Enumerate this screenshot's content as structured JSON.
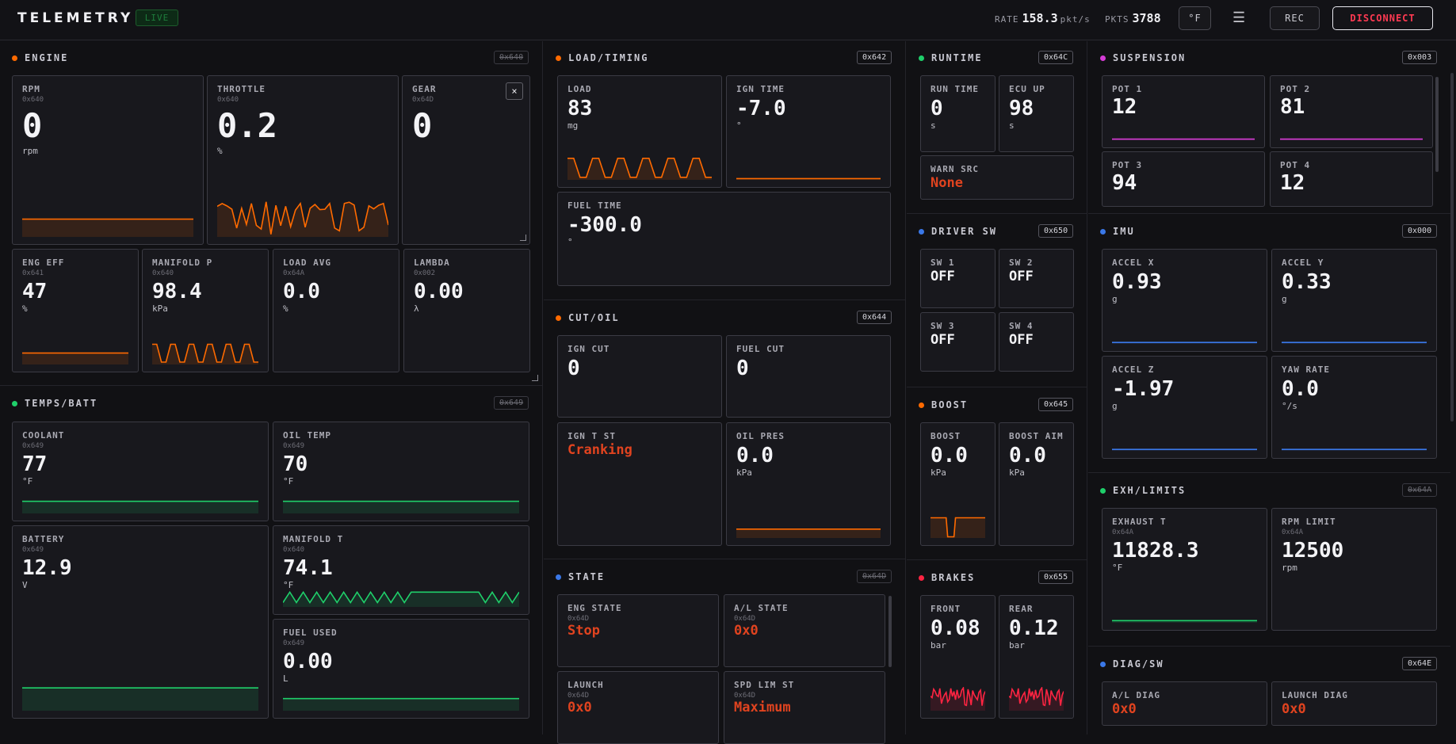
{
  "header": {
    "brand": "TELEMETRY",
    "live": "LIVE",
    "rate_label": "RATE",
    "rate_value": "158.3",
    "rate_unit": "pkt/s",
    "pkts_label": "PKTS",
    "pkts_value": "3788",
    "unit_toggle": "°F",
    "menu_icon": "☰",
    "rec": "REC",
    "disconnect": "DISCONNECT"
  },
  "colors": {
    "engine": "#ff6a00",
    "temps": "#1fcf6a",
    "runtime": "#1fcf6a",
    "suspension": "#d63cd6",
    "driver": "#3a78e8",
    "imu": "#3a78e8",
    "boost": "#ff6a00",
    "brakes": "#ff2442",
    "exh": "#1fcf6a",
    "diag": "#3a78e8",
    "state": "#3a78e8",
    "cut": "#ff6a00",
    "load": "#ff6a00",
    "alert": "#e0431f"
  },
  "engine": {
    "title": "ENGINE",
    "addr": "0x640",
    "rpm": {
      "label": "RPM",
      "hex": "0x640",
      "value": "0",
      "unit": "rpm"
    },
    "throttle": {
      "label": "THROTTLE",
      "hex": "0x640",
      "value": "0.2",
      "unit": "%"
    },
    "gear": {
      "label": "GEAR",
      "hex": "0x64D",
      "value": "0",
      "close": "×"
    },
    "eng_eff": {
      "label": "ENG EFF",
      "hex": "0x641",
      "value": "47",
      "unit": "%"
    },
    "manifold_p": {
      "label": "MANIFOLD P",
      "hex": "0x640",
      "value": "98.4",
      "unit": "kPa"
    },
    "load_avg": {
      "label": "LOAD AVG",
      "hex": "0x64A",
      "value": "0.0",
      "unit": "%"
    },
    "lambda": {
      "label": "LAMBDA",
      "hex": "0x002",
      "value": "0.00",
      "unit": "λ"
    }
  },
  "temps": {
    "title": "TEMPS/BATT",
    "addr": "0x649",
    "coolant": {
      "label": "COOLANT",
      "hex": "0x649",
      "value": "77",
      "unit": "°F"
    },
    "oil_temp": {
      "label": "OIL TEMP",
      "hex": "0x649",
      "value": "70",
      "unit": "°F"
    },
    "battery": {
      "label": "BATTERY",
      "hex": "0x649",
      "value": "12.9",
      "unit": "V"
    },
    "manifold_t": {
      "label": "MANIFOLD T",
      "hex": "0x640",
      "value": "74.1",
      "unit": "°F"
    },
    "fuel_used": {
      "label": "FUEL USED",
      "hex": "0x649",
      "value": "0.00",
      "unit": "L"
    }
  },
  "load_timing": {
    "title": "LOAD/TIMING",
    "addr": "0x642",
    "load": {
      "label": "LOAD",
      "value": "83",
      "unit": "mg"
    },
    "ign_time": {
      "label": "IGN TIME",
      "value": "-7.0",
      "unit": "°"
    },
    "fuel_time": {
      "label": "FUEL TIME",
      "value": "-300.0",
      "unit": "°"
    }
  },
  "cut_oil": {
    "title": "CUT/OIL",
    "addr": "0x644",
    "ign_cut": {
      "label": "IGN CUT",
      "value": "0"
    },
    "fuel_cut": {
      "label": "FUEL CUT",
      "value": "0"
    },
    "ign_t_st": {
      "label": "IGN T ST",
      "value": "Cranking"
    },
    "oil_pres": {
      "label": "OIL PRES",
      "value": "0.0",
      "unit": "kPa"
    }
  },
  "state": {
    "title": "STATE",
    "addr": "0x64D",
    "eng_state": {
      "label": "ENG STATE",
      "hex": "0x64D",
      "value": "Stop"
    },
    "al_state": {
      "label": "A/L STATE",
      "hex": "0x64D",
      "value": "0x0"
    },
    "launch": {
      "label": "LAUNCH",
      "hex": "0x64D",
      "value": "0x0"
    },
    "spd_lim": {
      "label": "SPD LIM ST",
      "hex": "0x64D",
      "value": "Maximum"
    }
  },
  "runtime": {
    "title": "RUNTIME",
    "addr": "0x64C",
    "run_time": {
      "label": "RUN TIME",
      "value": "0",
      "unit": "s"
    },
    "ecu_up": {
      "label": "ECU UP",
      "value": "98",
      "unit": "s"
    },
    "warn_src": {
      "label": "WARN SRC",
      "value": "None"
    }
  },
  "driver_sw": {
    "title": "DRIVER SW",
    "addr": "0x650",
    "sw1": {
      "label": "SW 1",
      "value": "OFF"
    },
    "sw2": {
      "label": "SW 2",
      "value": "OFF"
    },
    "sw3": {
      "label": "SW 3",
      "value": "OFF"
    },
    "sw4": {
      "label": "SW 4",
      "value": "OFF"
    }
  },
  "boost": {
    "title": "BOOST",
    "addr": "0x645",
    "boost": {
      "label": "BOOST",
      "value": "0.0",
      "unit": "kPa"
    },
    "boost_aim": {
      "label": "BOOST AIM",
      "value": "0.0",
      "unit": "kPa"
    }
  },
  "brakes": {
    "title": "BRAKES",
    "addr": "0x655",
    "front": {
      "label": "FRONT",
      "value": "0.08",
      "unit": "bar"
    },
    "rear": {
      "label": "REAR",
      "value": "0.12",
      "unit": "bar"
    }
  },
  "suspension": {
    "title": "SUSPENSION",
    "addr": "0x003",
    "pot1": {
      "label": "POT 1",
      "value": "12"
    },
    "pot2": {
      "label": "POT 2",
      "value": "81"
    },
    "pot3": {
      "label": "POT 3",
      "value": "94"
    },
    "pot4": {
      "label": "POT 4",
      "value": "12"
    }
  },
  "imu": {
    "title": "IMU",
    "addr": "0x000",
    "accel_x": {
      "label": "ACCEL X",
      "value": "0.93",
      "unit": "g"
    },
    "accel_y": {
      "label": "ACCEL Y",
      "value": "0.33",
      "unit": "g"
    },
    "accel_z": {
      "label": "ACCEL Z",
      "value": "-1.97",
      "unit": "g"
    },
    "yaw_rate": {
      "label": "YAW RATE",
      "value": "0.0",
      "unit": "°/s"
    }
  },
  "exh_limits": {
    "title": "EXH/LIMITS",
    "addr": "0x64A",
    "exhaust_t": {
      "label": "EXHAUST T",
      "hex": "0x64A",
      "value": "11828.3",
      "unit": "°F"
    },
    "rpm_limit": {
      "label": "RPM LIMIT",
      "hex": "0x64A",
      "value": "12500",
      "unit": "rpm"
    }
  },
  "diag_sw": {
    "title": "DIAG/SW",
    "addr": "0x64E",
    "al_diag": {
      "label": "A/L DIAG",
      "value": "0x0"
    },
    "launch_diag": {
      "label": "LAUNCH DIAG",
      "value": "0x0"
    }
  }
}
